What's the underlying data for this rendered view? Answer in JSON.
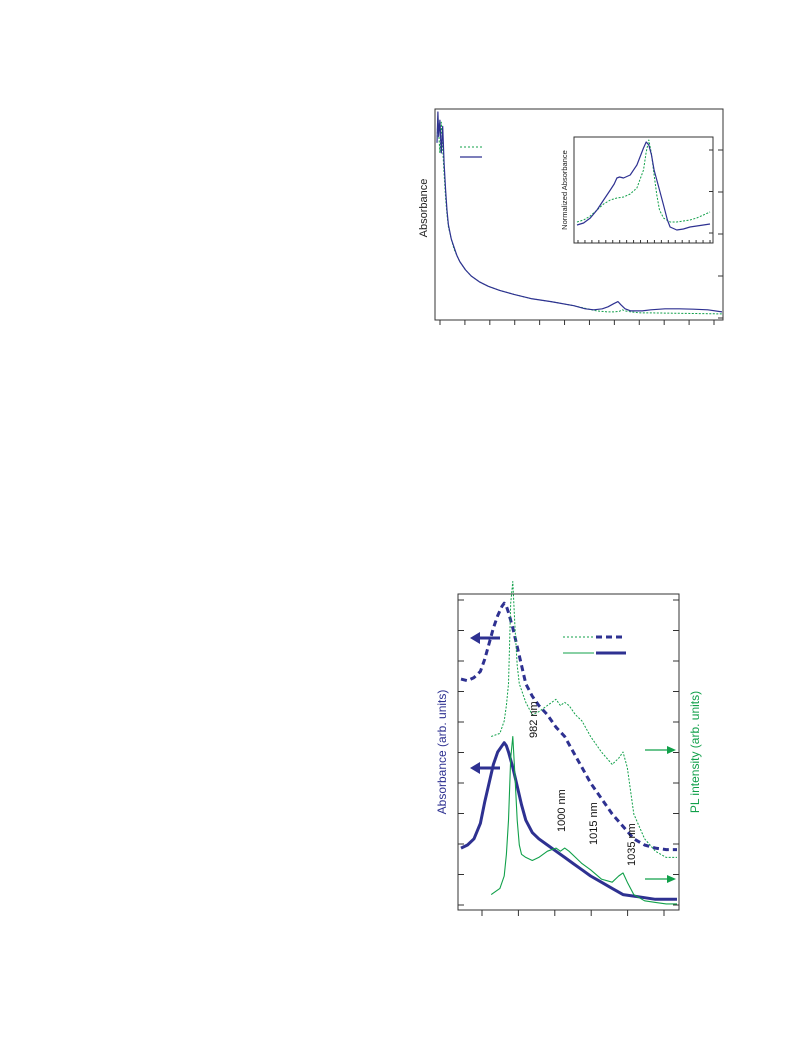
{
  "colors": {
    "blue": "#2e3191",
    "green": "#11a04a",
    "axis": "#333333"
  },
  "chart_data": [
    {
      "type": "line",
      "ylabel": "Absorbance",
      "grid": false,
      "legend": "top-left",
      "series": [
        {
          "style": "dotted",
          "color": "#11a04a",
          "x": [
            0,
            0.3,
            0.6,
            1,
            1.5,
            2,
            2.5,
            3,
            3.5,
            4,
            5,
            6,
            7,
            8,
            10,
            12,
            15,
            18,
            22,
            27,
            33,
            40,
            48,
            56,
            60,
            62,
            64,
            65,
            66,
            68,
            70,
            72,
            75,
            80,
            85,
            90,
            95,
            100
          ],
          "y": [
            0.86,
            0.98,
            0.9,
            0.8,
            0.95,
            0.82,
            0.7,
            0.58,
            0.5,
            0.44,
            0.38,
            0.33,
            0.3,
            0.27,
            0.23,
            0.2,
            0.17,
            0.15,
            0.13,
            0.11,
            0.09,
            0.075,
            0.055,
            0.03,
            0.025,
            0.025,
            0.028,
            0.035,
            0.03,
            0.025,
            0.022,
            0.02,
            0.02,
            0.019,
            0.018,
            0.017,
            0.016,
            0.015
          ]
        },
        {
          "style": "solid",
          "color": "#2e3191",
          "x": [
            0,
            0.3,
            0.6,
            1,
            1.5,
            2,
            2.5,
            3,
            3.5,
            4,
            5,
            6,
            7,
            8,
            10,
            12,
            15,
            18,
            22,
            27,
            33,
            40,
            48,
            52,
            55,
            58,
            60,
            62,
            63.5,
            64.5,
            66,
            68,
            70,
            72,
            75,
            80,
            85,
            90,
            95,
            100
          ],
          "y": [
            0.85,
            1.0,
            0.88,
            0.96,
            0.8,
            0.93,
            0.75,
            0.62,
            0.52,
            0.45,
            0.38,
            0.34,
            0.3,
            0.27,
            0.23,
            0.2,
            0.17,
            0.15,
            0.13,
            0.11,
            0.09,
            0.075,
            0.055,
            0.04,
            0.035,
            0.04,
            0.05,
            0.065,
            0.075,
            0.06,
            0.04,
            0.03,
            0.03,
            0.03,
            0.035,
            0.04,
            0.04,
            0.038,
            0.035,
            0.025
          ]
        }
      ],
      "inset": {
        "ylabel": "Normalized Absorbance",
        "series": [
          {
            "style": "dotted",
            "color": "#11a04a",
            "x": [
              0,
              5,
              10,
              15,
              20,
              25,
              30,
              35,
              40,
              45,
              50,
              52,
              54,
              56,
              58,
              60,
              62,
              65,
              70,
              75,
              80,
              85,
              90,
              95,
              100
            ],
            "y": [
              0.18,
              0.2,
              0.24,
              0.3,
              0.36,
              0.4,
              0.42,
              0.43,
              0.46,
              0.52,
              0.7,
              0.88,
              1.0,
              0.86,
              0.65,
              0.45,
              0.3,
              0.22,
              0.18,
              0.18,
              0.19,
              0.2,
              0.22,
              0.25,
              0.28
            ]
          },
          {
            "style": "solid",
            "color": "#2e3191",
            "x": [
              0,
              5,
              10,
              15,
              20,
              25,
              28,
              30,
              32,
              35,
              40,
              45,
              50,
              52,
              54,
              56,
              58,
              60,
              62,
              65,
              68,
              70,
              75,
              80,
              85,
              90,
              95,
              100
            ],
            "y": [
              0.15,
              0.17,
              0.22,
              0.3,
              0.4,
              0.5,
              0.56,
              0.62,
              0.63,
              0.62,
              0.65,
              0.75,
              0.92,
              0.98,
              0.95,
              0.85,
              0.7,
              0.6,
              0.5,
              0.35,
              0.2,
              0.13,
              0.1,
              0.11,
              0.13,
              0.14,
              0.15,
              0.16
            ]
          }
        ]
      }
    },
    {
      "type": "line",
      "ylabel": "Absorbance (arb. units)",
      "y2label": "PL intensity (arb. units)",
      "grid": false,
      "legend": "top-right",
      "annotations": [
        "982 nm",
        "1000 nm",
        "1015 nm",
        "1035 nm"
      ],
      "series": [
        {
          "style": "thick-dashed",
          "color": "#2e3191",
          "x": [
            0,
            3,
            6,
            9,
            11,
            13,
            15,
            17,
            19,
            20,
            21,
            22,
            24,
            26,
            28,
            30,
            33,
            36,
            40,
            44,
            48,
            52,
            56,
            60,
            65,
            70,
            75,
            80,
            85,
            90,
            95,
            100
          ],
          "y": [
            0.735,
            0.73,
            0.74,
            0.76,
            0.8,
            0.85,
            0.9,
            0.94,
            0.97,
            0.98,
            0.97,
            0.95,
            0.9,
            0.84,
            0.78,
            0.72,
            0.68,
            0.65,
            0.62,
            0.58,
            0.55,
            0.5,
            0.45,
            0.4,
            0.35,
            0.3,
            0.26,
            0.22,
            0.2,
            0.19,
            0.185,
            0.185
          ]
        },
        {
          "style": "thin-dotted",
          "color": "#11a04a",
          "x": [
            14,
            18,
            20,
            21,
            22,
            23,
            24,
            25,
            26,
            27,
            28,
            30,
            33,
            36,
            40,
            44,
            46,
            48,
            50,
            53,
            56,
            60,
            65,
            70,
            73,
            75,
            77,
            80,
            85,
            90,
            95,
            100
          ],
          "y": [
            0.55,
            0.56,
            0.6,
            0.65,
            0.72,
            0.98,
            1.05,
            0.9,
            0.78,
            0.72,
            0.7,
            0.66,
            0.62,
            0.63,
            0.65,
            0.67,
            0.65,
            0.66,
            0.65,
            0.62,
            0.6,
            0.55,
            0.5,
            0.46,
            0.48,
            0.5,
            0.45,
            0.3,
            0.22,
            0.18,
            0.16,
            0.16
          ]
        },
        {
          "style": "thick-solid",
          "color": "#2e3191",
          "x": [
            0,
            3,
            6,
            9,
            11,
            13,
            15,
            17,
            19,
            20,
            21,
            22,
            24,
            26,
            28,
            30,
            33,
            36,
            40,
            44,
            48,
            52,
            56,
            60,
            65,
            70,
            75,
            80,
            85,
            90,
            95,
            100
          ],
          "y": [
            0.19,
            0.2,
            0.22,
            0.27,
            0.34,
            0.4,
            0.46,
            0.5,
            0.52,
            0.53,
            0.52,
            0.5,
            0.45,
            0.39,
            0.33,
            0.28,
            0.24,
            0.22,
            0.2,
            0.18,
            0.16,
            0.14,
            0.12,
            0.1,
            0.08,
            0.06,
            0.04,
            0.035,
            0.03,
            0.025,
            0.025,
            0.025
          ]
        },
        {
          "style": "thin-solid",
          "color": "#11a04a",
          "x": [
            14,
            18,
            20,
            21,
            22,
            23,
            24,
            25,
            26,
            27,
            28,
            30,
            33,
            36,
            40,
            44,
            46,
            48,
            50,
            53,
            56,
            60,
            65,
            70,
            73,
            75,
            77,
            80,
            85,
            90,
            95,
            100
          ],
          "y": [
            0.04,
            0.06,
            0.1,
            0.17,
            0.28,
            0.48,
            0.55,
            0.42,
            0.28,
            0.2,
            0.17,
            0.16,
            0.15,
            0.16,
            0.18,
            0.19,
            0.18,
            0.19,
            0.18,
            0.16,
            0.14,
            0.12,
            0.09,
            0.08,
            0.1,
            0.11,
            0.08,
            0.04,
            0.02,
            0.015,
            0.01,
            0.01
          ]
        }
      ]
    }
  ]
}
